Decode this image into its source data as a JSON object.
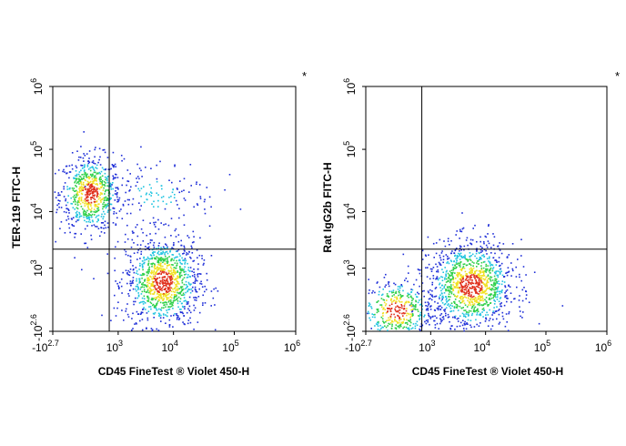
{
  "colors": {
    "density_low": "#1f2fd8",
    "density_mid": "#21c4e0",
    "density_high": "#2fd04a",
    "density_peak": "#f0e020",
    "density_max": "#e0301c"
  },
  "chart_data": [
    {
      "type": "scatter",
      "subtype": "flow-cytometry-density-dot-plot",
      "title": "",
      "corner_mark": "*",
      "xlabel": "CD45  FineTest ® Violet 450-H",
      "ylabel": "TER-119 FITC-H",
      "x_scale": "biexponential",
      "y_scale": "biexponential",
      "xlim": [
        -501,
        1000000
      ],
      "ylim": [
        -398,
        1000000
      ],
      "x_ticks": [
        {
          "value": -501,
          "base": "-10",
          "exp": "2.7"
        },
        {
          "value": 1000,
          "base": "10",
          "exp": "3"
        },
        {
          "value": 10000,
          "base": "10",
          "exp": "4"
        },
        {
          "value": 100000,
          "base": "10",
          "exp": "5"
        },
        {
          "value": 1000000,
          "base": "10",
          "exp": "6"
        }
      ],
      "y_ticks": [
        {
          "value": -398,
          "base": "-10",
          "exp": "2.6"
        },
        {
          "value": 1000,
          "base": "10",
          "exp": "3"
        },
        {
          "value": 10000,
          "base": "10",
          "exp": "4"
        },
        {
          "value": 100000,
          "base": "10",
          "exp": "5"
        },
        {
          "value": 1000000,
          "base": "10",
          "exp": "6"
        }
      ],
      "gate": {
        "x": 630,
        "y": 2300
      },
      "populations": [
        {
          "x_center": 150,
          "y_center": 20000,
          "x_spread": 0.25,
          "y_spread": 0.3,
          "count": 700,
          "peak": "red"
        },
        {
          "x_center": 6500,
          "y_center": 500,
          "x_spread": 0.3,
          "y_spread": 0.35,
          "count": 1100,
          "peak": "red"
        },
        {
          "x_center": 5000,
          "y_center": 20000,
          "x_spread": 0.5,
          "y_spread": 0.3,
          "count": 140,
          "peak": "blue"
        }
      ],
      "grid": false,
      "legend": "none"
    },
    {
      "type": "scatter",
      "subtype": "flow-cytometry-density-dot-plot",
      "title": "",
      "corner_mark": "*",
      "xlabel": "CD45  FineTest ® Violet 450-H",
      "ylabel": "Rat IgG2b FITC-H",
      "x_scale": "biexponential",
      "y_scale": "biexponential",
      "xlim": [
        -501,
        1000000
      ],
      "ylim": [
        -398,
        1000000
      ],
      "x_ticks": [
        {
          "value": -501,
          "base": "-10",
          "exp": "2.7"
        },
        {
          "value": 1000,
          "base": "10",
          "exp": "3"
        },
        {
          "value": 10000,
          "base": "10",
          "exp": "4"
        },
        {
          "value": 100000,
          "base": "10",
          "exp": "5"
        },
        {
          "value": 1000000,
          "base": "10",
          "exp": "6"
        }
      ],
      "y_ticks": [
        {
          "value": -398,
          "base": "-10",
          "exp": "2.6"
        },
        {
          "value": 1000,
          "base": "10",
          "exp": "3"
        },
        {
          "value": 10000,
          "base": "10",
          "exp": "4"
        },
        {
          "value": 100000,
          "base": "10",
          "exp": "5"
        },
        {
          "value": 1000000,
          "base": "10",
          "exp": "6"
        }
      ],
      "gate": {
        "x": 630,
        "y": 2300
      },
      "populations": [
        {
          "x_center": 50,
          "y_center": -20,
          "x_spread": 0.3,
          "y_spread": 0.25,
          "count": 450,
          "peak": "red"
        },
        {
          "x_center": 5500,
          "y_center": 400,
          "x_spread": 0.35,
          "y_spread": 0.35,
          "count": 1200,
          "peak": "red"
        }
      ],
      "grid": false,
      "legend": "none"
    }
  ]
}
